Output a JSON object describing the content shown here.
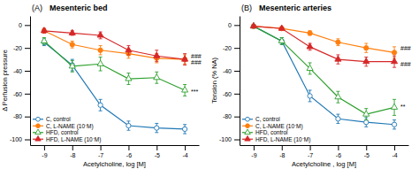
{
  "chart_data": [
    {
      "type": "line",
      "title": "Mesenteric bed",
      "label": "(A)",
      "x_label": "Acetylcholine,  log [M]",
      "y_label": "Δ Perfusion pressure",
      "x": [
        -9,
        -8,
        -7,
        -6,
        -5,
        -4
      ],
      "series": [
        {
          "name": "C, control",
          "marker": "circle-open",
          "values": [
            -15,
            -35,
            -70,
            -88,
            -90,
            -91
          ],
          "yerr": [
            3,
            5,
            5,
            4,
            4,
            4
          ]
        },
        {
          "name": "C, L-NAME (10⁻M)",
          "marker": "circle",
          "values": [
            -5,
            -17,
            -22,
            -25,
            -29,
            -30
          ],
          "yerr": [
            2,
            3,
            4,
            4,
            4,
            4
          ]
        },
        {
          "name": "HFD, control",
          "marker": "triangle-open",
          "values": [
            -14,
            -36,
            -34,
            -47,
            -46,
            -57
          ],
          "yerr": [
            3,
            5,
            6,
            5,
            5,
            5
          ]
        },
        {
          "name": "HFD, L-NAME (10⁻M)",
          "marker": "triangle",
          "values": [
            -5,
            -7,
            -9,
            -22,
            -27,
            -30
          ],
          "yerr": [
            2,
            2,
            3,
            4,
            5,
            5
          ]
        }
      ],
      "xlim": [
        -9.5,
        -3.5
      ],
      "xticks": [
        -9,
        -8,
        -7,
        -6,
        -5,
        -4
      ],
      "ylim": [
        -105,
        8
      ],
      "yticks": [
        0,
        -20,
        -40,
        -60,
        -80,
        -100
      ],
      "annotations": [
        {
          "text": "###",
          "x": -3.78,
          "y": -27
        },
        {
          "text": "###",
          "x": -3.78,
          "y": -33
        },
        {
          "text": "***",
          "x": -3.78,
          "y": -58
        }
      ],
      "legend": "lower left",
      "grid": false
    },
    {
      "type": "line",
      "title": "Mesenteric arteries",
      "label": "(B)",
      "x_label": "Acetylcholine , log [M]",
      "y_label": "Tension (% NA)",
      "x": [
        -9,
        -8,
        -7,
        -6,
        -5,
        -4
      ],
      "series": [
        {
          "name": "C, control",
          "marker": "circle-open",
          "values": [
            -1,
            -14,
            -62,
            -82,
            -85,
            -87
          ],
          "yerr": [
            1,
            3,
            5,
            4,
            4,
            4
          ]
        },
        {
          "name": "C, L-NAME (10⁻M)",
          "marker": "circle",
          "values": [
            -1,
            -3,
            -7,
            -15,
            -20,
            -24
          ],
          "yerr": [
            1,
            1,
            2,
            3,
            4,
            5
          ]
        },
        {
          "name": "HFD, control",
          "marker": "triangle-open",
          "values": [
            -1,
            -14,
            -38,
            -63,
            -78,
            -72
          ],
          "yerr": [
            1,
            3,
            5,
            5,
            5,
            7
          ]
        },
        {
          "name": "HFD, L-NAME (10⁻M)",
          "marker": "triangle",
          "values": [
            -1,
            -3,
            -19,
            -30,
            -32,
            -32
          ],
          "yerr": [
            1,
            1,
            3,
            4,
            4,
            5
          ]
        }
      ],
      "xlim": [
        -9.5,
        -3.5
      ],
      "xticks": [
        -9,
        -8,
        -7,
        -6,
        -5,
        -4
      ],
      "ylim": [
        -105,
        8
      ],
      "yticks": [
        0,
        -20,
        -40,
        -60,
        -80,
        -100
      ],
      "annotations": [
        {
          "text": "###",
          "x": -3.78,
          "y": -20
        },
        {
          "text": "###",
          "x": -3.78,
          "y": -34
        },
        {
          "text": "**",
          "x": -3.78,
          "y": -71
        }
      ],
      "legend": "lower left",
      "grid": false
    }
  ]
}
